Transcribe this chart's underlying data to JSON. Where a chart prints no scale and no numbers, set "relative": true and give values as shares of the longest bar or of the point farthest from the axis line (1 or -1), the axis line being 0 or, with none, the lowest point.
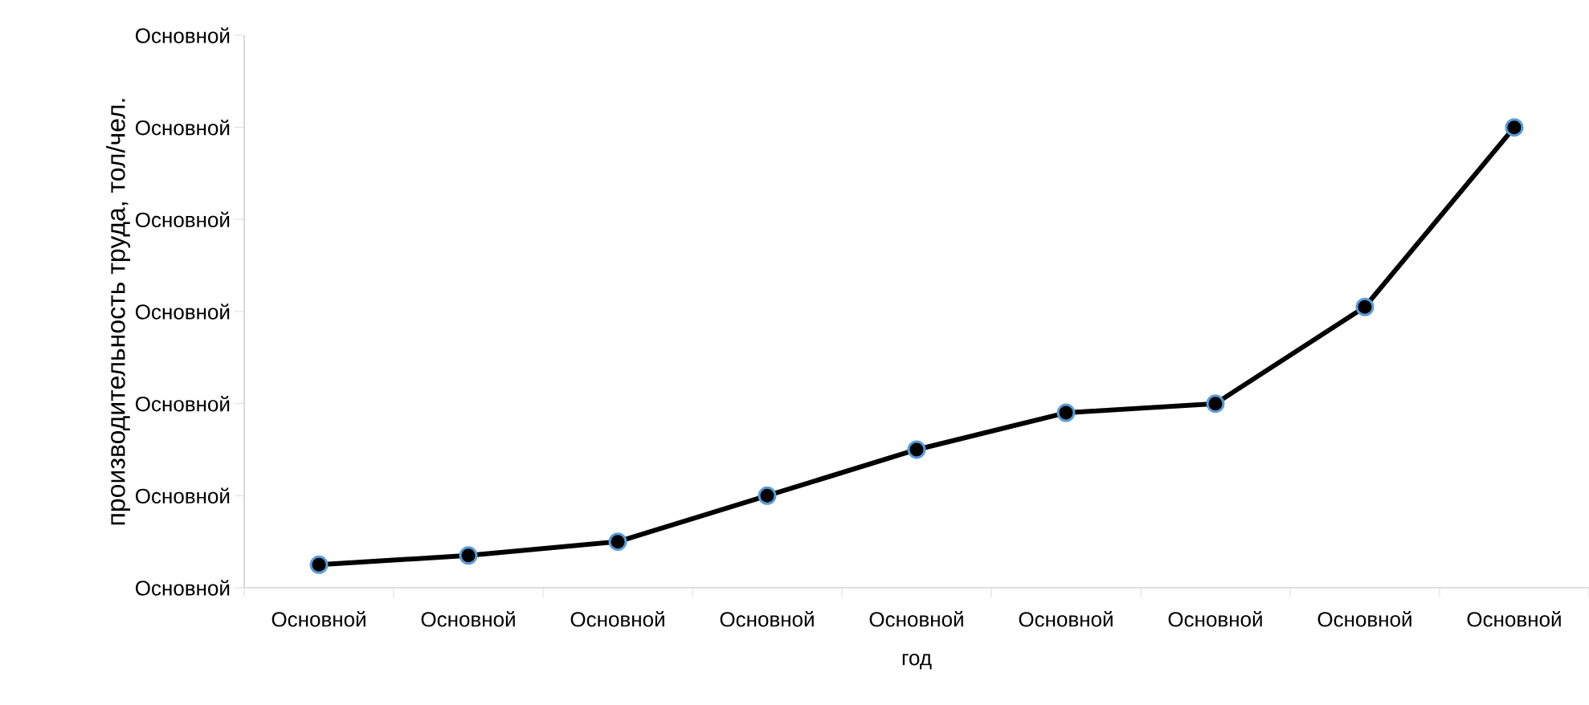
{
  "chart_data": {
    "type": "line",
    "xlabel": "год",
    "ylabel": "производительность труда, тол/чел.",
    "categories": [
      "Основной",
      "Основной",
      "Основной",
      "Основной",
      "Основной",
      "Основной",
      "Основной",
      "Основной",
      "Основной"
    ],
    "values": [
      0.05,
      0.07,
      0.1,
      0.2,
      0.3,
      0.38,
      0.4,
      0.61,
      1.0
    ],
    "relative": true,
    "color": "#000000",
    "marker": "circle",
    "line_style": "solid",
    "annotations": [
      "Основной",
      "Основной",
      "Основной",
      "Основной",
      "Основной",
      "Основной",
      "Основной"
    ]
  }
}
